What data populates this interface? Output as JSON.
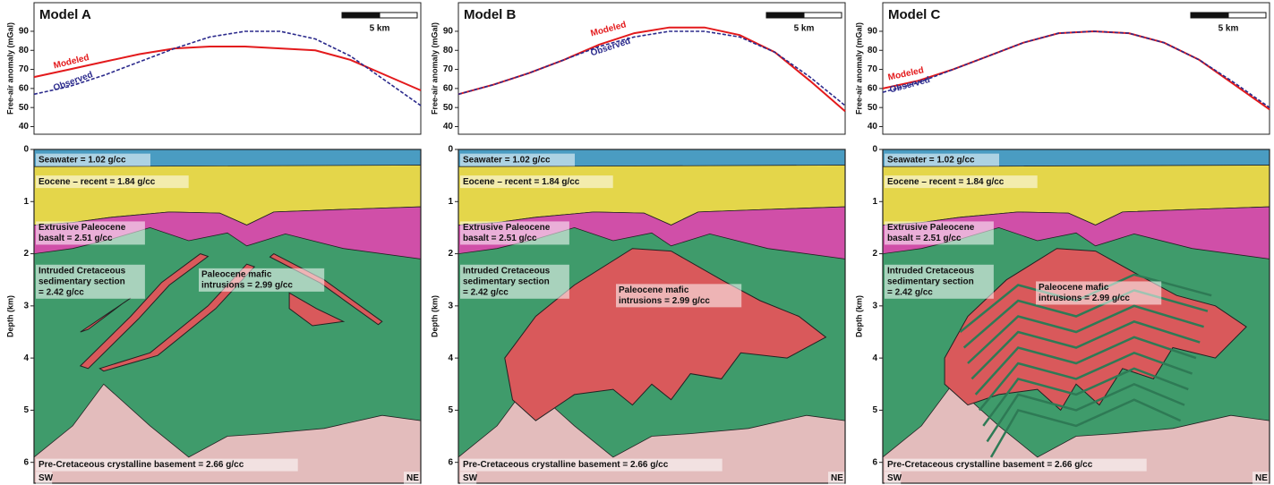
{
  "chart_data": [
    {
      "type": "line",
      "title": "Model A",
      "y_label": "Free-air anomaly (mGal)",
      "scale_label": "5 km",
      "ylim": [
        36,
        105
      ],
      "yticks": [
        40,
        50,
        60,
        70,
        80,
        90
      ],
      "series": [
        {
          "name": "Modeled",
          "color": "#e31a1c",
          "values": [
            66,
            70,
            74,
            78,
            81,
            82,
            82,
            81,
            80,
            75,
            67,
            59
          ]
        },
        {
          "name": "Observed",
          "color": "#2b2a8c",
          "values": [
            57,
            61,
            67,
            74,
            81,
            87,
            90,
            90,
            86,
            77,
            64,
            51
          ]
        }
      ]
    },
    {
      "type": "line",
      "title": "Model B",
      "y_label": "Free-air anomaly (mGal)",
      "scale_label": "5 km",
      "ylim": [
        36,
        105
      ],
      "yticks": [
        40,
        50,
        60,
        70,
        80,
        90
      ],
      "series": [
        {
          "name": "Modeled",
          "color": "#e31a1c",
          "values": [
            57,
            62,
            68,
            75,
            83,
            89,
            92,
            92,
            88,
            79,
            64,
            48
          ]
        },
        {
          "name": "Observed",
          "color": "#2b2a8c",
          "values": [
            57,
            62,
            68,
            75,
            82,
            87,
            90,
            90,
            87,
            79,
            66,
            51
          ]
        }
      ]
    },
    {
      "type": "line",
      "title": "Model C",
      "y_label": "Free-air anomaly (mGal)",
      "scale_label": "5 km",
      "ylim": [
        36,
        105
      ],
      "yticks": [
        40,
        50,
        60,
        70,
        80,
        90
      ],
      "series": [
        {
          "name": "Modeled",
          "color": "#e31a1c",
          "values": [
            60,
            64,
            70,
            77,
            84,
            89,
            90,
            89,
            84,
            75,
            62,
            49
          ]
        },
        {
          "name": "Observed",
          "color": "#2b2a8c",
          "values": [
            58,
            63,
            70,
            77,
            84,
            89,
            90,
            89,
            84,
            75,
            63,
            50
          ]
        }
      ]
    }
  ],
  "sections": [
    {
      "depth_label": "Depth (km)",
      "ylim": [
        0,
        6.4
      ],
      "yticks": [
        0,
        1,
        2,
        3,
        4,
        5,
        6
      ],
      "seawater": "Seawater = 1.02 g/cc",
      "eocene": "Eocene – recent = 1.84 g/cc",
      "basalt": [
        "Extrusive Paleocene",
        "basalt = 2.51 g/cc"
      ],
      "cretaceous": [
        "Intruded Cretaceous",
        "sedimentary section",
        "= 2.42 g/cc"
      ],
      "intrusions": [
        "Paleocene mafic",
        "intrusions = 2.99 g/cc"
      ],
      "basement": "Pre-Cretaceous crystalline basement = 2.66 g/cc",
      "left": "SW",
      "right": "NE"
    },
    {
      "depth_label": "Depth (km)",
      "ylim": [
        0,
        6.4
      ],
      "yticks": [
        0,
        1,
        2,
        3,
        4,
        5,
        6
      ],
      "seawater": "Seawater = 1.02 g/cc",
      "eocene": "Eocene – recent = 1.84 g/cc",
      "basalt": [
        "Extrusive Paleocene",
        "basalt = 2.51 g/cc"
      ],
      "cretaceous": [
        "Intruded Cretaceous",
        "sedimentary section",
        "= 2.42 g/cc"
      ],
      "intrusions": [
        "Paleocene mafic",
        "intrusions = 2.99 g/cc"
      ],
      "basement": "Pre-Cretaceous crystalline basement = 2.66 g/cc",
      "left": "SW",
      "right": "NE"
    },
    {
      "depth_label": "Depth (km)",
      "ylim": [
        0,
        6.4
      ],
      "yticks": [
        0,
        1,
        2,
        3,
        4,
        5,
        6
      ],
      "seawater": "Seawater = 1.02 g/cc",
      "eocene": "Eocene – recent = 1.84 g/cc",
      "basalt": [
        "Extrusive Paleocene",
        "basalt = 2.51 g/cc"
      ],
      "cretaceous": [
        "Intruded Cretaceous",
        "sedimentary section",
        "= 2.42 g/cc"
      ],
      "intrusions": [
        "Paleocene mafic",
        "intrusions = 2.99 g/cc"
      ],
      "basement": "Pre-Cretaceous crystalline basement = 2.66 g/cc",
      "left": "SW",
      "right": "NE"
    }
  ]
}
